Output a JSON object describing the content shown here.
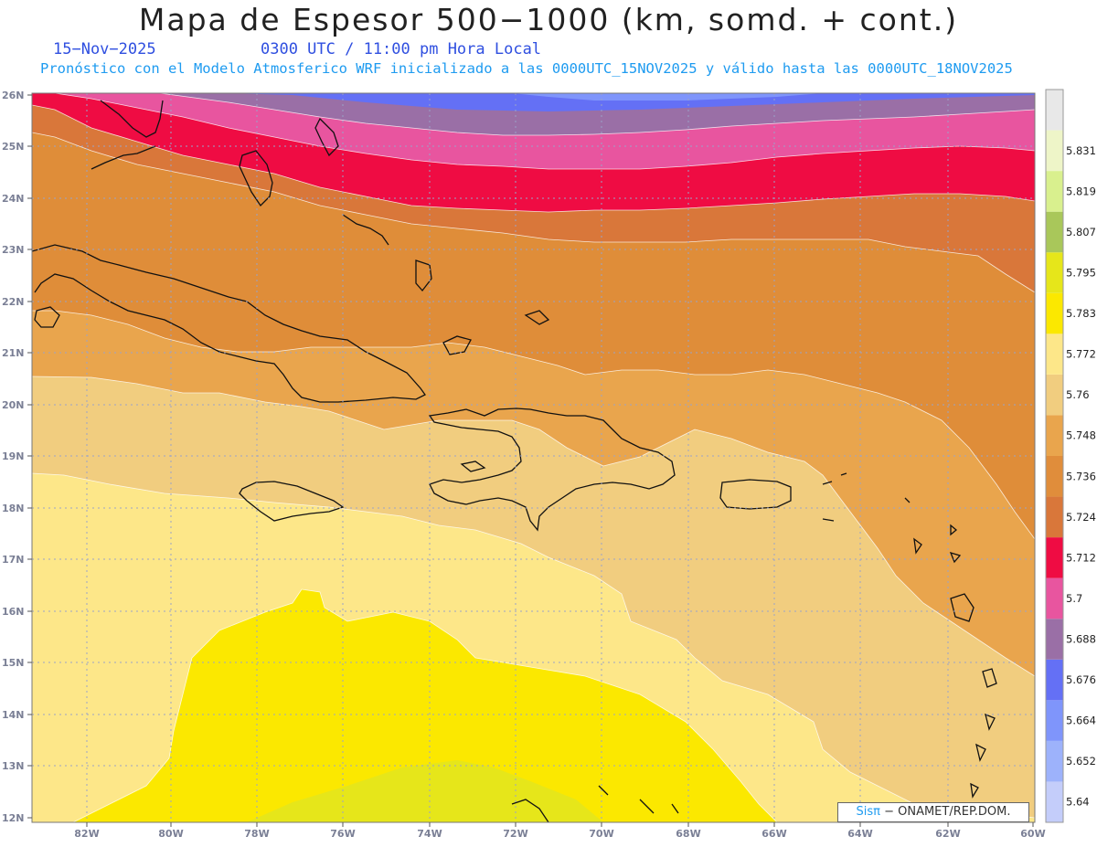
{
  "header": {
    "title": "Mapa de Espesor 500−1000 (km, somd. + cont.)",
    "date": "15−Nov−2025",
    "time": "0300 UTC / 11:00 pm Hora Local",
    "subtitle": "Pronóstico con el Modelo Atmosferico WRF inicializado a las 0000UTC_15NOV2025 y válido hasta las  0000UTC_18NOV2025"
  },
  "map": {
    "lon_labels": [
      "82W",
      "80W",
      "78W",
      "76W",
      "74W",
      "72W",
      "70W",
      "68W",
      "66W",
      "64W",
      "62W",
      "60W"
    ],
    "lat_labels": [
      "26N",
      "25N",
      "24N",
      "23N",
      "22N",
      "21N",
      "20N",
      "19N",
      "18N",
      "17N",
      "16N",
      "15N",
      "14N",
      "13N",
      "12N"
    ],
    "lon_range": [
      -83.2,
      -60
    ],
    "lat_range": [
      12,
      26
    ]
  },
  "colorbar": {
    "levels": [
      "5.64",
      "5.652",
      "5.664",
      "5.676",
      "5.688",
      "5.7",
      "5.712",
      "5.724",
      "5.736",
      "5.748",
      "5.76",
      "5.772",
      "5.783",
      "5.795",
      "5.807",
      "5.819",
      "5.831"
    ],
    "colors": [
      "#c4cdfa",
      "#9db2fb",
      "#7f95fb",
      "#6470f5",
      "#9a6fa6",
      "#e8559f",
      "#ef0c43",
      "#d9773a",
      "#e08d3b",
      "#e9a54d",
      "#f1cd7f",
      "#fde789",
      "#fbe800",
      "#e6e61a",
      "#a9c75a",
      "#d9f08e",
      "#eef5c8",
      "#e8e8e8"
    ]
  },
  "credit": {
    "brand": "Sisπ",
    "text": " − ONAMET/REP.DOM."
  }
}
